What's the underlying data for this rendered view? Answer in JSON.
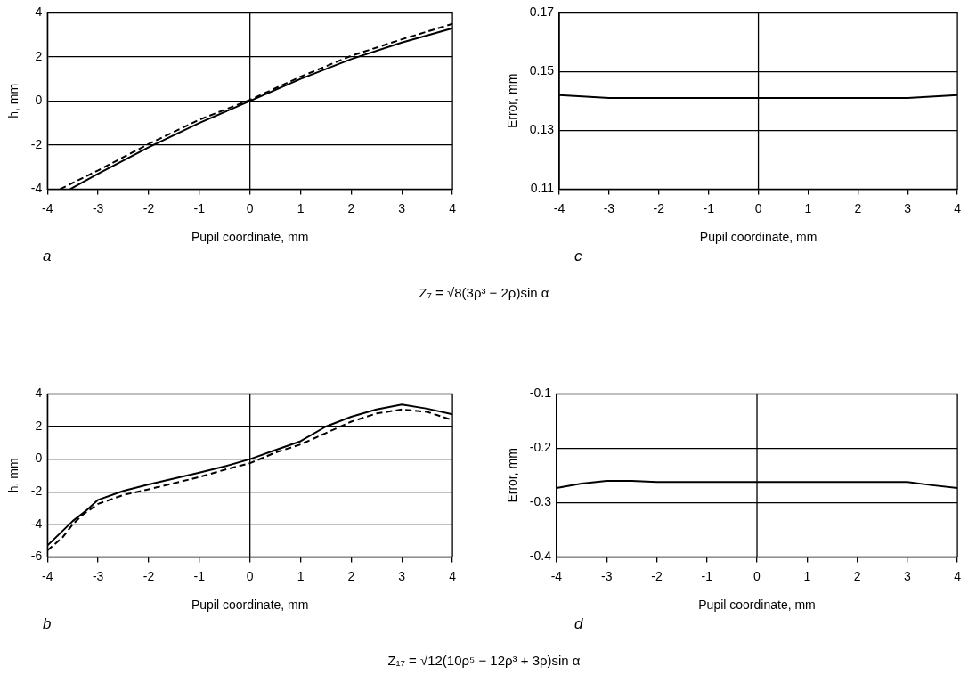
{
  "chart_data": [
    {
      "type": "line",
      "xlabel": "Pupil coordinate, mm",
      "ylabel": "h, mm",
      "xlim": [
        -4,
        4
      ],
      "xticks": [
        -4,
        -3,
        -2,
        -1,
        0,
        1,
        2,
        3,
        4
      ],
      "ylim": [
        -4,
        4
      ],
      "yticks": [
        -4,
        -2,
        0,
        2,
        4
      ],
      "grid": "y",
      "ref_lines": [
        {
          "axis": "x",
          "value": 0
        }
      ],
      "annotations": [
        "a"
      ],
      "series": [
        {
          "color": "#000000",
          "line_style": "solid",
          "x": [
            -3.55,
            -3,
            -2,
            -1,
            0,
            1,
            2,
            3,
            4
          ],
          "values": [
            -4,
            -3.3,
            -2.1,
            -1.0,
            0,
            1.0,
            1.9,
            2.65,
            3.3
          ]
        },
        {
          "color": "#000000",
          "line_style": "dashed",
          "x": [
            -3.75,
            -3,
            -2,
            -1,
            0,
            1,
            2,
            3,
            4
          ],
          "values": [
            -4,
            -3.15,
            -1.95,
            -0.85,
            0.05,
            1.1,
            2.05,
            2.8,
            3.5
          ]
        }
      ]
    },
    {
      "type": "line",
      "xlabel": "Pupil coordinate, mm",
      "ylabel": "Error, mm",
      "xlim": [
        -4,
        4
      ],
      "xticks": [
        -4,
        -3,
        -2,
        -1,
        0,
        1,
        2,
        3,
        4
      ],
      "ylim": [
        0.11,
        0.17
      ],
      "yticks": [
        0.11,
        0.13,
        0.15,
        0.17
      ],
      "grid": "y",
      "ref_lines": [
        {
          "axis": "x",
          "value": 0
        }
      ],
      "annotations": [
        "c",
        "Z₇ = √8(3ρ³ − 2ρ)sin α"
      ],
      "series": [
        {
          "color": "#000000",
          "line_style": "solid",
          "x": [
            -4,
            -3,
            -2,
            -1,
            0,
            1,
            2,
            3,
            4
          ],
          "values": [
            0.142,
            0.141,
            0.141,
            0.141,
            0.141,
            0.141,
            0.141,
            0.141,
            0.142
          ]
        }
      ]
    },
    {
      "type": "line",
      "xlabel": "Pupil coordinate, mm",
      "ylabel": "h, mm",
      "xlim": [
        -4,
        4
      ],
      "xticks": [
        -4,
        -3,
        -2,
        -1,
        0,
        1,
        2,
        3,
        4
      ],
      "ylim": [
        -6,
        4
      ],
      "yticks": [
        -6,
        -4,
        -2,
        0,
        2,
        4
      ],
      "grid": "y",
      "ref_lines": [
        {
          "axis": "x",
          "value": 0
        }
      ],
      "annotations": [
        "b"
      ],
      "series": [
        {
          "color": "#000000",
          "line_style": "solid",
          "x": [
            -4,
            -3.5,
            -3.25,
            -3,
            -2.5,
            -2,
            -1,
            -0.5,
            0,
            0.5,
            1,
            1.5,
            2,
            2.5,
            3,
            3.5,
            4
          ],
          "values": [
            -5.3,
            -3.8,
            -3.2,
            -2.5,
            -1.95,
            -1.55,
            -0.83,
            -0.45,
            0,
            0.55,
            1.1,
            2.0,
            2.6,
            3.05,
            3.35,
            3.1,
            2.75
          ]
        },
        {
          "color": "#000000",
          "line_style": "dashed",
          "x": [
            -4,
            -3.7,
            -3.5,
            -3.3,
            -3,
            -2.5,
            -2,
            -1,
            -0.5,
            0,
            0.5,
            1,
            1.5,
            2,
            2.5,
            3,
            3.5,
            4
          ],
          "values": [
            -5.6,
            -4.8,
            -4.0,
            -3.4,
            -2.75,
            -2.2,
            -1.85,
            -1.1,
            -0.65,
            -0.25,
            0.4,
            0.9,
            1.6,
            2.3,
            2.8,
            3.05,
            2.9,
            2.4
          ]
        }
      ]
    },
    {
      "type": "line",
      "xlabel": "Pupil coordinate, mm",
      "ylabel": "Error, mm",
      "xlim": [
        -4,
        4
      ],
      "xticks": [
        -4,
        -3,
        -2,
        -1,
        0,
        1,
        2,
        3,
        4
      ],
      "ylim": [
        -0.4,
        -0.1
      ],
      "yticks": [
        -0.4,
        -0.3,
        -0.2,
        -0.1
      ],
      "grid": "y",
      "ref_lines": [
        {
          "axis": "x",
          "value": 0
        }
      ],
      "annotations": [
        "d",
        "Z₁₇ = √12(10ρ⁵ − 12ρ³ + 3ρ)sin α"
      ],
      "series": [
        {
          "color": "#000000",
          "line_style": "solid",
          "x": [
            -4,
            -3.5,
            -3,
            -2.5,
            -2,
            -1,
            0,
            1,
            2,
            3,
            3.5,
            4
          ],
          "values": [
            -0.273,
            -0.265,
            -0.26,
            -0.26,
            -0.262,
            -0.262,
            -0.262,
            -0.262,
            -0.262,
            -0.262,
            -0.268,
            -0.273
          ]
        }
      ]
    }
  ]
}
